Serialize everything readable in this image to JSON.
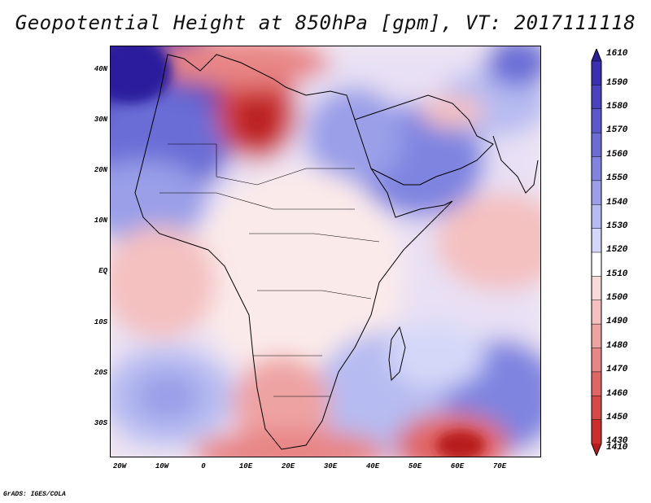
{
  "title": "Geopotential Height at 850hPa [gpm], VT: 2017111118",
  "credit": "GrADS: IGES/COLA",
  "map": {
    "lat_labels": [
      "40N",
      "30N",
      "20N",
      "10N",
      "EQ",
      "10S",
      "20S",
      "30S"
    ],
    "lon_labels": [
      "20W",
      "10W",
      "0",
      "10E",
      "20E",
      "30E",
      "40E",
      "50E",
      "60E",
      "70E"
    ]
  },
  "colorbar": {
    "labels": [
      "1610",
      "1590",
      "1580",
      "1570",
      "1560",
      "1550",
      "1540",
      "1530",
      "1520",
      "1510",
      "1500",
      "1490",
      "1480",
      "1470",
      "1460",
      "1450",
      "1430",
      "1410"
    ],
    "colors": [
      "#2c1f9c",
      "#3a2fb0",
      "#4a43c0",
      "#5a58cc",
      "#6b6dd6",
      "#7f84e0",
      "#9a9fe8",
      "#b6bbf1",
      "#d4d8f8",
      "#ffffff",
      "#f9dada",
      "#f4c0c0",
      "#eea3a3",
      "#e88585",
      "#e06565",
      "#d84848",
      "#cc2e2e",
      "#b81b1b"
    ]
  }
}
